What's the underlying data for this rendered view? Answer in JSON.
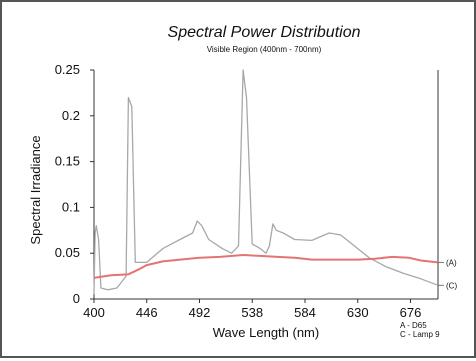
{
  "chart_data": {
    "type": "line",
    "title": "Spectral Power Distribution",
    "subtitle": "Visible Region (400nm - 700nm)",
    "xlabel": "Wave Length (nm)",
    "ylabel": "Spectral Irradiance",
    "xlim": [
      400,
      700
    ],
    "ylim": [
      0,
      0.25
    ],
    "x_ticks": [
      "400",
      "446",
      "492",
      "538",
      "584",
      "630",
      "676"
    ],
    "y_ticks": [
      "0",
      "0.05",
      "0.1",
      "0.15",
      "0.2",
      "0.25"
    ],
    "grid": false,
    "series": [
      {
        "name": "A",
        "end_label": "(A)",
        "legend_label": "A - D65",
        "color": "#e57373",
        "points": [
          [
            400,
            0.023
          ],
          [
            415,
            0.026
          ],
          [
            430,
            0.027
          ],
          [
            440,
            0.033
          ],
          [
            446,
            0.037
          ],
          [
            460,
            0.041
          ],
          [
            475,
            0.043
          ],
          [
            492,
            0.045
          ],
          [
            510,
            0.046
          ],
          [
            530,
            0.048
          ],
          [
            545,
            0.047
          ],
          [
            560,
            0.046
          ],
          [
            575,
            0.045
          ],
          [
            590,
            0.043
          ],
          [
            610,
            0.043
          ],
          [
            630,
            0.043
          ],
          [
            645,
            0.044
          ],
          [
            660,
            0.046
          ],
          [
            675,
            0.045
          ],
          [
            685,
            0.042
          ],
          [
            700,
            0.04
          ]
        ]
      },
      {
        "name": "C",
        "end_label": "(C)",
        "legend_label": "C - Lamp 9",
        "color": "#a8a8a8",
        "points": [
          [
            400,
            0.005
          ],
          [
            401,
            0.072
          ],
          [
            402,
            0.08
          ],
          [
            404,
            0.065
          ],
          [
            406,
            0.012
          ],
          [
            412,
            0.01
          ],
          [
            420,
            0.012
          ],
          [
            428,
            0.025
          ],
          [
            430,
            0.22
          ],
          [
            433,
            0.21
          ],
          [
            436,
            0.04
          ],
          [
            446,
            0.04
          ],
          [
            460,
            0.055
          ],
          [
            475,
            0.065
          ],
          [
            486,
            0.072
          ],
          [
            490,
            0.085
          ],
          [
            494,
            0.08
          ],
          [
            500,
            0.065
          ],
          [
            512,
            0.055
          ],
          [
            520,
            0.05
          ],
          [
            526,
            0.058
          ],
          [
            530,
            0.25
          ],
          [
            533,
            0.22
          ],
          [
            538,
            0.06
          ],
          [
            545,
            0.055
          ],
          [
            550,
            0.05
          ],
          [
            553,
            0.058
          ],
          [
            556,
            0.082
          ],
          [
            559,
            0.075
          ],
          [
            565,
            0.072
          ],
          [
            575,
            0.065
          ],
          [
            590,
            0.064
          ],
          [
            605,
            0.072
          ],
          [
            615,
            0.07
          ],
          [
            625,
            0.06
          ],
          [
            640,
            0.045
          ],
          [
            655,
            0.035
          ],
          [
            670,
            0.028
          ],
          [
            685,
            0.022
          ],
          [
            700,
            0.015
          ]
        ]
      }
    ]
  }
}
